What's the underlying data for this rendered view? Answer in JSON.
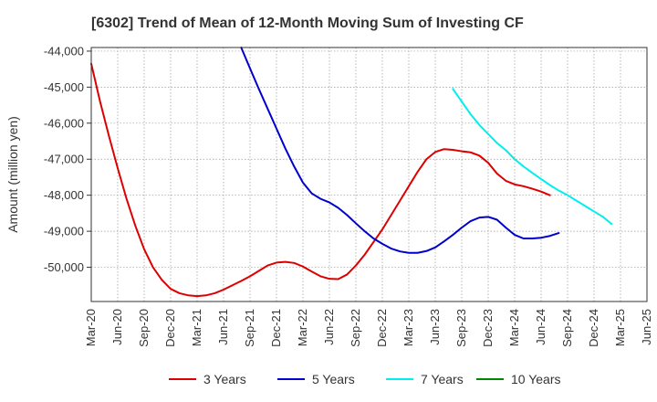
{
  "chart_data": {
    "type": "line",
    "title": "[6302]  Trend of Mean of 12-Month Moving Sum of Investing CF",
    "xlabel": "",
    "ylabel": "Amount (million yen)",
    "x_ticks": [
      "Mar-20",
      "Jun-20",
      "Sep-20",
      "Dec-20",
      "Mar-21",
      "Jun-21",
      "Sep-21",
      "Dec-21",
      "Mar-22",
      "Jun-22",
      "Sep-22",
      "Dec-22",
      "Mar-23",
      "Jun-23",
      "Sep-23",
      "Dec-23",
      "Mar-24",
      "Jun-24",
      "Sep-24",
      "Dec-24",
      "Mar-25",
      "Jun-25"
    ],
    "y_ticks": [
      -44000,
      -45000,
      -46000,
      -47000,
      -48000,
      -49000,
      -50000
    ],
    "y_tick_labels": [
      "-44,000",
      "-45,000",
      "-46,000",
      "-47,000",
      "-48,000",
      "-49,000",
      "-50,000"
    ],
    "ylim": [
      -50950,
      -43900
    ],
    "grid": true,
    "legend_position": "bottom",
    "series": [
      {
        "name": "3 Years",
        "color": "#dd0000",
        "start": "Mar-20",
        "values": [
          -44350,
          -45400,
          -46350,
          -47250,
          -48100,
          -48850,
          -49500,
          -50000,
          -50350,
          -50600,
          -50720,
          -50780,
          -50800,
          -50780,
          -50720,
          -50620,
          -50500,
          -50380,
          -50250,
          -50100,
          -49950,
          -49870,
          -49850,
          -49880,
          -49980,
          -50120,
          -50250,
          -50320,
          -50330,
          -50200,
          -49950,
          -49650,
          -49300,
          -48950,
          -48550,
          -48150,
          -47750,
          -47350,
          -47000,
          -46800,
          -46720,
          -46740,
          -46780,
          -46810,
          -46900,
          -47100,
          -47400,
          -47600,
          -47700,
          -47750,
          -47820,
          -47900,
          -48000
        ]
      },
      {
        "name": "5 Years",
        "color": "#0000cc",
        "start": "Aug-21",
        "values": [
          -43900,
          -44480,
          -45050,
          -45600,
          -46150,
          -46700,
          -47200,
          -47650,
          -47950,
          -48100,
          -48200,
          -48350,
          -48550,
          -48780,
          -49000,
          -49200,
          -49350,
          -49480,
          -49560,
          -49600,
          -49600,
          -49550,
          -49450,
          -49280,
          -49100,
          -48900,
          -48720,
          -48620,
          -48600,
          -48680,
          -48900,
          -49100,
          -49200,
          -49200,
          -49180,
          -49130,
          -49050
        ]
      },
      {
        "name": "7 Years",
        "color": "#00eeee",
        "start": "Aug-23",
        "values": [
          -45050,
          -45400,
          -45750,
          -46050,
          -46300,
          -46550,
          -46750,
          -47000,
          -47200,
          -47380,
          -47550,
          -47720,
          -47870,
          -48000,
          -48150,
          -48300,
          -48450,
          -48600,
          -48800
        ]
      },
      {
        "name": "10 Years",
        "color": "#008800",
        "start": "",
        "values": []
      }
    ]
  }
}
